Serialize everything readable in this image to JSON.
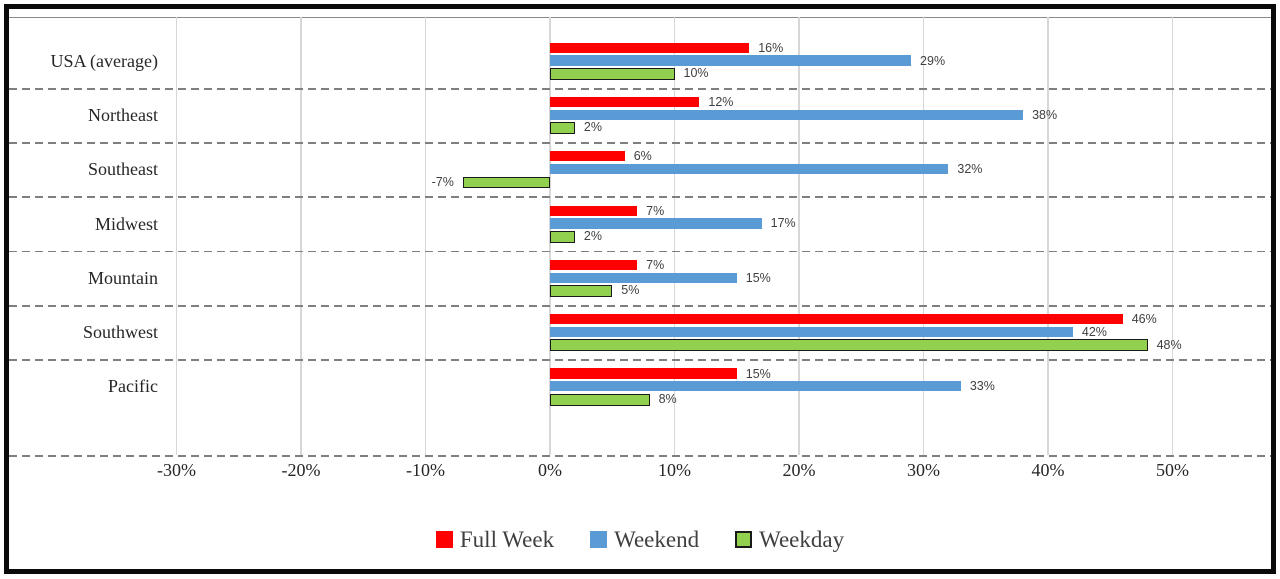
{
  "chart_data": {
    "type": "bar",
    "orientation": "horizontal",
    "title": "",
    "categories": [
      "USA (average)",
      "Northeast",
      "Southeast",
      "Midwest",
      "Mountain",
      "Southwest",
      "Pacific"
    ],
    "series": [
      {
        "name": "Full Week",
        "color": "#FF0000",
        "border_color": null,
        "values": [
          16,
          12,
          6,
          7,
          7,
          46,
          15
        ]
      },
      {
        "name": "Weekend",
        "color": "#5B9BD5",
        "border_color": null,
        "values": [
          29,
          38,
          32,
          17,
          15,
          42,
          33
        ]
      },
      {
        "name": "Weekday",
        "color": "#92D050",
        "border_color": "#1a1a1a",
        "values": [
          10,
          2,
          -7,
          2,
          5,
          48,
          8
        ]
      }
    ],
    "data_labels": {
      "visible": true,
      "suffix": "%",
      "color": "#404040"
    },
    "x_axis": {
      "tick_labels": [
        "-30%",
        "-20%",
        "-10%",
        "0%",
        "10%",
        "20%",
        "30%",
        "40%",
        "50%"
      ],
      "tick_values": [
        -30,
        -20,
        -10,
        0,
        10,
        20,
        30,
        40,
        50
      ],
      "range_shown": [
        -43,
        58
      ]
    },
    "grid": {
      "vertical_gridlines": true,
      "vertical_gridline_color": "#D7D7D7",
      "row_separators": "dashed",
      "row_separator_color": "#7F7F7F"
    },
    "legend": {
      "position": "bottom",
      "text_color": "#404040"
    },
    "frame": {
      "border_color": "#0A0A0A",
      "axis_text_color": "#262626"
    }
  }
}
